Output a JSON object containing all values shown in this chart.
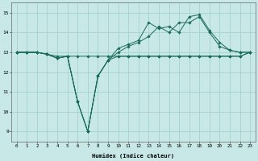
{
  "x": [
    0,
    1,
    2,
    3,
    4,
    5,
    6,
    7,
    8,
    9,
    10,
    11,
    12,
    13,
    14,
    15,
    16,
    17,
    18,
    19,
    20,
    21,
    22,
    23
  ],
  "y_flat": [
    13,
    13,
    13,
    12.9,
    12.8,
    12.8,
    12.8,
    12.8,
    12.8,
    12.8,
    12.8,
    12.8,
    12.8,
    12.8,
    12.8,
    12.8,
    12.8,
    12.8,
    12.8,
    12.8,
    12.8,
    12.8,
    12.8,
    13.0
  ],
  "y_dip_low": [
    13,
    13,
    13,
    12.9,
    12.7,
    12.8,
    10.5,
    9.0,
    11.8,
    12.6,
    12.8,
    12.8,
    12.8,
    12.8,
    12.8,
    12.8,
    12.8,
    12.8,
    12.8,
    12.8,
    12.8,
    12.8,
    12.8,
    13.0
  ],
  "y_mid": [
    13,
    13,
    13,
    12.9,
    12.7,
    12.8,
    10.5,
    9.0,
    11.8,
    12.6,
    13.0,
    13.3,
    13.5,
    13.8,
    14.3,
    14.0,
    14.5,
    14.5,
    14.8,
    14.0,
    13.3,
    13.1,
    13.0,
    13.0
  ],
  "y_high": [
    13,
    13,
    13,
    12.9,
    12.7,
    12.8,
    10.5,
    9.0,
    11.8,
    12.6,
    13.2,
    13.4,
    13.6,
    14.5,
    14.2,
    14.3,
    14.0,
    14.8,
    14.9,
    14.1,
    13.5,
    13.1,
    13.0,
    13.0
  ],
  "xlabel": "Humidex (Indice chaleur)",
  "ylim": [
    8.5,
    15.5
  ],
  "xlim": [
    -0.5,
    23.5
  ],
  "yticks": [
    9,
    10,
    11,
    12,
    13,
    14,
    15
  ],
  "xticks": [
    0,
    1,
    2,
    3,
    4,
    5,
    6,
    7,
    8,
    9,
    10,
    11,
    12,
    13,
    14,
    15,
    16,
    17,
    18,
    19,
    20,
    21,
    22,
    23
  ],
  "bg_color": "#c8e8e8",
  "line_color": "#1a6b5a",
  "grid_color": "#9ecece"
}
